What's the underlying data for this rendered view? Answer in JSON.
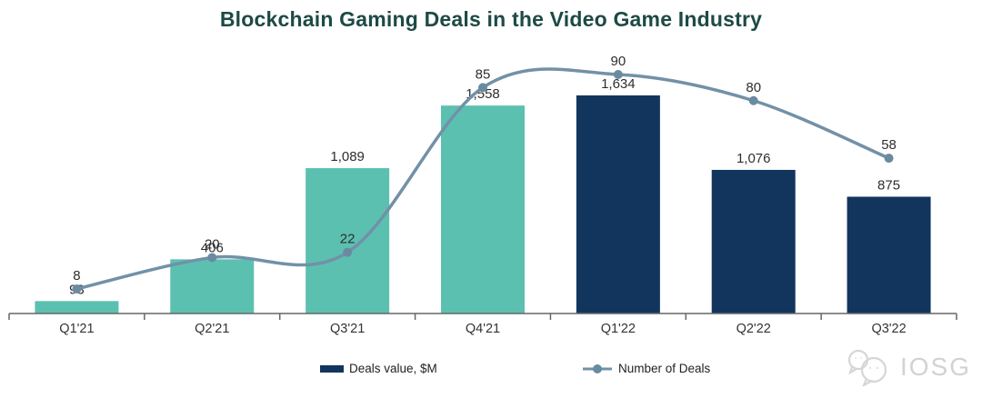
{
  "title": "Blockchain Gaming Deals in the Video Game Industry",
  "chart_data": {
    "type": "bar",
    "combo": "bar+line",
    "title": "Blockchain Gaming Deals in the Video Game Industry",
    "categories": [
      "Q1'21",
      "Q2'21",
      "Q3'21",
      "Q4'21",
      "Q1'22",
      "Q2'22",
      "Q3'22"
    ],
    "series": [
      {
        "name": "Deals value, $M",
        "type": "bar",
        "values": [
          93,
          406,
          1089,
          1558,
          1634,
          1076,
          875
        ],
        "labels": [
          "93",
          "406",
          "1,089",
          "1,558",
          "1,634",
          "1,076",
          "875"
        ],
        "point_colors": [
          "#5cc0b0",
          "#5cc0b0",
          "#5cc0b0",
          "#5cc0b0",
          "#12355e",
          "#12355e",
          "#12355e"
        ]
      },
      {
        "name": "Number of Deals",
        "type": "line",
        "values": [
          8,
          20,
          22,
          85,
          90,
          80,
          58
        ],
        "labels": [
          "8",
          "20",
          "22",
          "85",
          "90",
          "80",
          "58"
        ],
        "color": "#7291a7",
        "marker_color": "#698ba1"
      }
    ],
    "xlabel": "",
    "ylabel": "",
    "ylim_bar": [
      0,
      1700
    ],
    "ylim_line": [
      0,
      95
    ],
    "grid": false,
    "legend_position": "bottom"
  },
  "legend": {
    "items": [
      {
        "label": "Deals value, $M",
        "swatch": "bar"
      },
      {
        "label": "Number of Deals",
        "swatch": "line"
      }
    ]
  },
  "watermark": {
    "text": "IOSG"
  },
  "colors": {
    "bar_2021": "#5cc0b0",
    "bar_2022": "#12355e",
    "line": "#7291a7",
    "title": "#1d4a46",
    "axis": "#666666",
    "label_text": "#2e2e2e"
  }
}
